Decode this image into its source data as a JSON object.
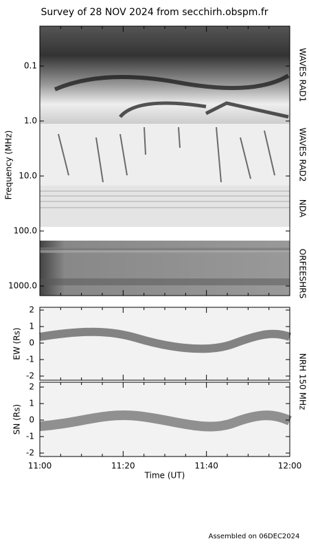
{
  "header": {
    "title": "Survey of 28 NOV 2024 from secchirh.obspm.fr"
  },
  "freq_axis": {
    "label": "Frequency (MHz)",
    "scale": "log",
    "ticks": [
      {
        "value": 0.1,
        "label": "0.1"
      },
      {
        "value": 1,
        "label": "1.0"
      },
      {
        "value": 10,
        "label": "10.0"
      },
      {
        "value": 100,
        "label": "100.0"
      },
      {
        "value": 1000,
        "label": "1000.0"
      }
    ]
  },
  "instruments": [
    "WAVES RAD1",
    "WAVES RAD2",
    "NDA",
    "ORFEESHRS",
    "NRH 150 MHz"
  ],
  "ew_axis": {
    "label": "EW (Rs)",
    "ticks": [
      2,
      1,
      0,
      -1,
      -2
    ]
  },
  "sn_axis": {
    "label": "SN (Rs)",
    "ticks": [
      2,
      1,
      0,
      -1,
      -2
    ]
  },
  "time_axis": {
    "label": "Time (UT)",
    "ticks": [
      "11:00",
      "11:20",
      "11:40",
      "12:00"
    ]
  },
  "footer": "Assembled on 06DEC2024"
}
